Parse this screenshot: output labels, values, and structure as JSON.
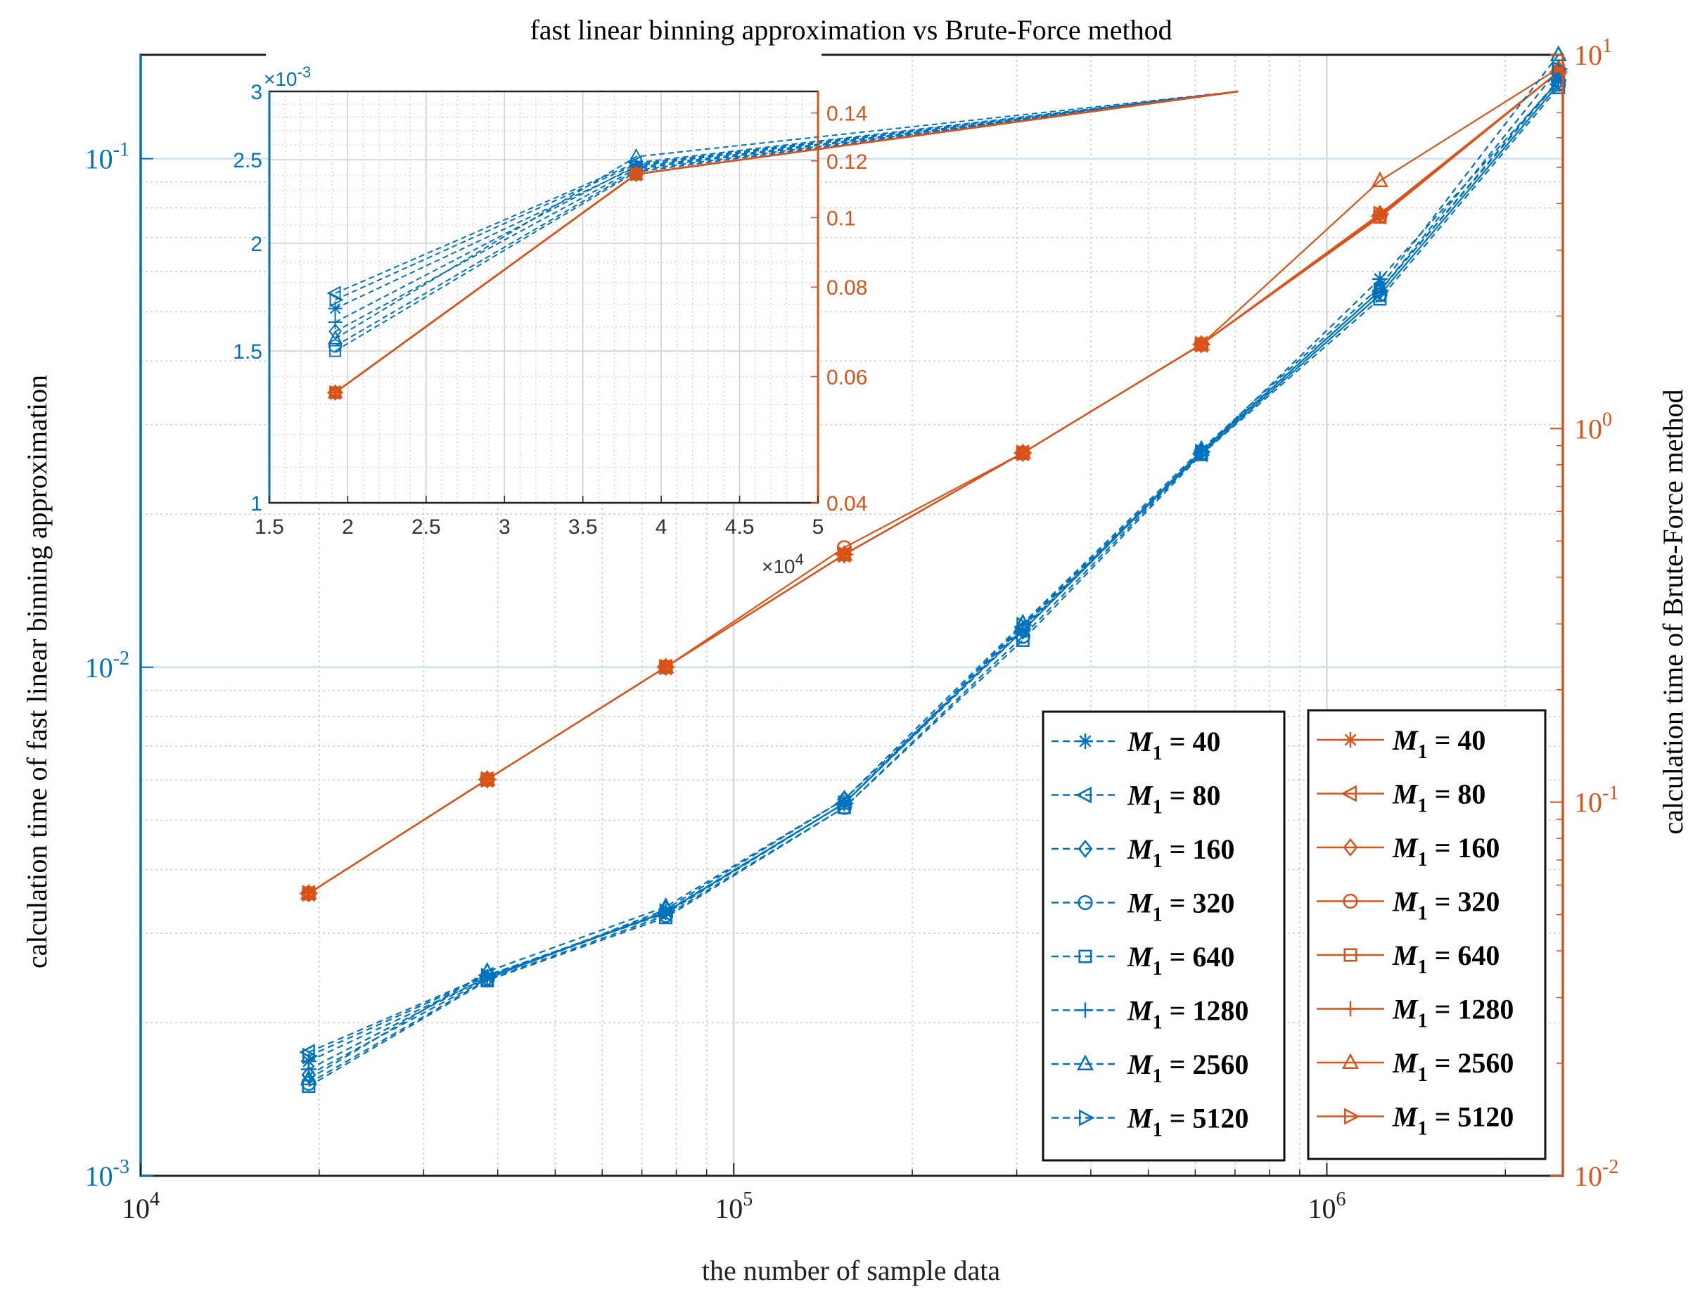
{
  "figure": {
    "title": "fast linear binning approximation vs Brute-Force method",
    "xlabel": "the number of sample data",
    "ylabel_left": "calculation time of fast linear binning approximation",
    "ylabel_right": "calculation time of Brute-Force method"
  },
  "colors": {
    "blue": "#0072BD",
    "orange": "#D95319",
    "grid": "#cfcfcf",
    "grid_major_left": "#c9e2f3"
  },
  "chart_data": [
    {
      "type": "line",
      "name": "main",
      "x_scale": "log",
      "y_left_scale": "log",
      "y_right_scale": "log",
      "xlim": [
        10000,
        2500000
      ],
      "ylim_left": [
        0.001,
        0.16
      ],
      "ylim_right": [
        0.01,
        10
      ],
      "grid": true,
      "x_ticks": [
        {
          "value": 10000,
          "base": "10",
          "exp": "4"
        },
        {
          "value": 100000,
          "base": "10",
          "exp": "5"
        },
        {
          "value": 1000000,
          "base": "10",
          "exp": "6"
        }
      ],
      "y_left_ticks": [
        {
          "value": 0.001,
          "base": "10",
          "exp": "-3"
        },
        {
          "value": 0.01,
          "base": "10",
          "exp": "-2"
        },
        {
          "value": 0.1,
          "base": "10",
          "exp": "-1"
        }
      ],
      "y_right_ticks": [
        {
          "value": 0.01,
          "base": "10",
          "exp": "-2"
        },
        {
          "value": 0.1,
          "base": "10",
          "exp": "-1"
        },
        {
          "value": 1,
          "base": "10",
          "exp": "0"
        },
        {
          "value": 10,
          "base": "10",
          "exp": "1"
        }
      ],
      "x": [
        19200,
        38400,
        76800,
        153600,
        307200,
        614400,
        1228800,
        2457600
      ],
      "legend_left": {
        "placement": "bottom-right",
        "entries": [
          {
            "marker": "asterisk",
            "prefix": "M",
            "sub": "1",
            "value": " = 40"
          },
          {
            "marker": "triangle-left",
            "prefix": "M",
            "sub": "1",
            "value": " = 80"
          },
          {
            "marker": "diamond",
            "prefix": "M",
            "sub": "1",
            "value": " = 160"
          },
          {
            "marker": "circle",
            "prefix": "M",
            "sub": "1",
            "value": " = 320"
          },
          {
            "marker": "square",
            "prefix": "M",
            "sub": "1",
            "value": " = 640"
          },
          {
            "marker": "plus",
            "prefix": "M",
            "sub": "1",
            "value": " = 1280"
          },
          {
            "marker": "triangle-up",
            "prefix": "M",
            "sub": "1",
            "value": " = 2560"
          },
          {
            "marker": "triangle-right",
            "prefix": "M",
            "sub": "1",
            "value": " = 5120"
          }
        ]
      },
      "legend_right": {
        "placement": "bottom-right",
        "entries": [
          {
            "marker": "asterisk",
            "prefix": "M",
            "sub": "1",
            "value": " = 40"
          },
          {
            "marker": "triangle-left",
            "prefix": "M",
            "sub": "1",
            "value": " = 80"
          },
          {
            "marker": "diamond",
            "prefix": "M",
            "sub": "1",
            "value": " = 160"
          },
          {
            "marker": "circle",
            "prefix": "M",
            "sub": "1",
            "value": " = 320"
          },
          {
            "marker": "square",
            "prefix": "M",
            "sub": "1",
            "value": " = 640"
          },
          {
            "marker": "plus",
            "prefix": "M",
            "sub": "1",
            "value": " = 1280"
          },
          {
            "marker": "triangle-up",
            "prefix": "M",
            "sub": "1",
            "value": " = 2560"
          },
          {
            "marker": "triangle-right",
            "prefix": "M",
            "sub": "1",
            "value": " = 5120"
          }
        ]
      },
      "series_left": [
        {
          "marker": "asterisk",
          "values": [
            0.00168,
            0.00245,
            0.0033,
            0.0054,
            0.0118,
            0.0265,
            0.058,
            0.142
          ]
        },
        {
          "marker": "triangle-left",
          "values": [
            0.00175,
            0.00248,
            0.00328,
            0.0054,
            0.012,
            0.0263,
            0.054,
            0.14
          ]
        },
        {
          "marker": "diamond",
          "values": [
            0.00158,
            0.00244,
            0.00334,
            0.0055,
            0.0118,
            0.0266,
            0.055,
            0.142
          ]
        },
        {
          "marker": "circle",
          "values": [
            0.00152,
            0.00243,
            0.00325,
            0.0053,
            0.0115,
            0.0264,
            0.054,
            0.14
          ]
        },
        {
          "marker": "square",
          "values": [
            0.0015,
            0.00242,
            0.00322,
            0.0053,
            0.0113,
            0.0262,
            0.053,
            0.138
          ]
        },
        {
          "marker": "plus",
          "values": [
            0.00162,
            0.00246,
            0.0033,
            0.0054,
            0.0119,
            0.0266,
            0.055,
            0.143
          ]
        },
        {
          "marker": "triangle-up",
          "values": [
            0.00155,
            0.00252,
            0.00338,
            0.0055,
            0.0122,
            0.0268,
            0.056,
            0.16
          ]
        },
        {
          "marker": "triangle-right",
          "values": [
            0.00172,
            0.00247,
            0.00331,
            0.0054,
            0.0121,
            0.0265,
            0.055,
            0.15
          ]
        }
      ],
      "series_right": [
        {
          "marker": "asterisk",
          "values": [
            0.057,
            0.115,
            0.23,
            0.46,
            0.86,
            1.68,
            3.72,
            9.0
          ]
        },
        {
          "marker": "triangle-left",
          "values": [
            0.057,
            0.115,
            0.23,
            0.46,
            0.86,
            1.68,
            3.7,
            9.0
          ]
        },
        {
          "marker": "diamond",
          "values": [
            0.057,
            0.115,
            0.23,
            0.46,
            0.86,
            1.68,
            3.75,
            9.0
          ]
        },
        {
          "marker": "circle",
          "values": [
            0.057,
            0.115,
            0.23,
            0.48,
            0.86,
            1.68,
            3.7,
            9.0
          ]
        },
        {
          "marker": "square",
          "values": [
            0.057,
            0.115,
            0.23,
            0.46,
            0.86,
            1.68,
            3.68,
            9.0
          ]
        },
        {
          "marker": "plus",
          "values": [
            0.057,
            0.115,
            0.23,
            0.46,
            0.86,
            1.68,
            3.72,
            9.0
          ]
        },
        {
          "marker": "triangle-up",
          "values": [
            0.057,
            0.115,
            0.23,
            0.46,
            0.86,
            1.68,
            4.6,
            9.2
          ]
        },
        {
          "marker": "triangle-right",
          "values": [
            0.057,
            0.115,
            0.23,
            0.46,
            0.86,
            1.68,
            3.75,
            9.0
          ]
        }
      ]
    },
    {
      "type": "line",
      "name": "inset",
      "x_scale": "linear",
      "y_left_scale": "log",
      "y_right_scale": "log",
      "xlim": [
        15000,
        50000
      ],
      "ylim_left": [
        0.001,
        0.003
      ],
      "ylim_right": [
        0.04,
        0.15
      ],
      "grid": true,
      "x_exponent_label": {
        "base": "×10",
        "exp": "4"
      },
      "y_left_exponent_label": {
        "base": "×10",
        "exp": "-3"
      },
      "x_ticks": [
        {
          "value": 15000,
          "label": "1.5"
        },
        {
          "value": 20000,
          "label": "2"
        },
        {
          "value": 25000,
          "label": "2.5"
        },
        {
          "value": 30000,
          "label": "3"
        },
        {
          "value": 35000,
          "label": "3.5"
        },
        {
          "value": 40000,
          "label": "4"
        },
        {
          "value": 45000,
          "label": "4.5"
        },
        {
          "value": 50000,
          "label": "5"
        }
      ],
      "y_left_ticks": [
        {
          "value": 0.001,
          "label": "1"
        },
        {
          "value": 0.0015,
          "label": "1.5"
        },
        {
          "value": 0.002,
          "label": "2"
        },
        {
          "value": 0.0025,
          "label": "2.5"
        },
        {
          "value": 0.003,
          "label": "3"
        }
      ],
      "y_right_ticks": [
        {
          "value": 0.04,
          "label": "0.04"
        },
        {
          "value": 0.06,
          "label": "0.06"
        },
        {
          "value": 0.08,
          "label": "0.08"
        },
        {
          "value": 0.1,
          "label": "0.1"
        },
        {
          "value": 0.12,
          "label": "0.12"
        },
        {
          "value": 0.14,
          "label": "0.14"
        }
      ]
    }
  ]
}
